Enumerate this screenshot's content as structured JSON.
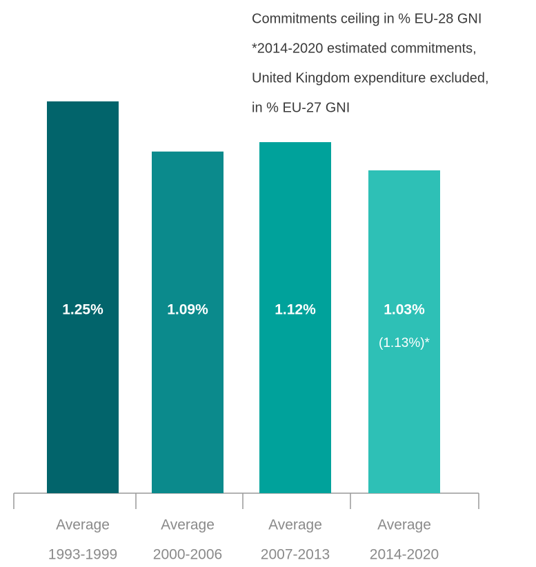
{
  "chart_data": {
    "type": "bar",
    "annotations": [
      "Commitments ceiling in % EU-28 GNI",
      "*2014-2020 estimated commitments,",
      "United Kingdom expenditure excluded,",
      "in % EU-27 GNI"
    ],
    "categories": [
      [
        "Average",
        "1993-1999"
      ],
      [
        "Average",
        "2000-2006"
      ],
      [
        "Average",
        "2007-2013"
      ],
      [
        "Average",
        "2014-2020"
      ]
    ],
    "values": [
      1.25,
      1.09,
      1.12,
      1.03
    ],
    "value_labels": [
      "1.25%",
      "1.09%",
      "1.12%",
      "1.03%"
    ],
    "alt_values": [
      null,
      null,
      null,
      1.13
    ],
    "alt_value_labels": [
      null,
      null,
      null,
      "(1.13%)*"
    ],
    "colors": [
      "#02646b",
      "#0b8a8c",
      "#00a29b",
      "#2ec0b6"
    ]
  }
}
